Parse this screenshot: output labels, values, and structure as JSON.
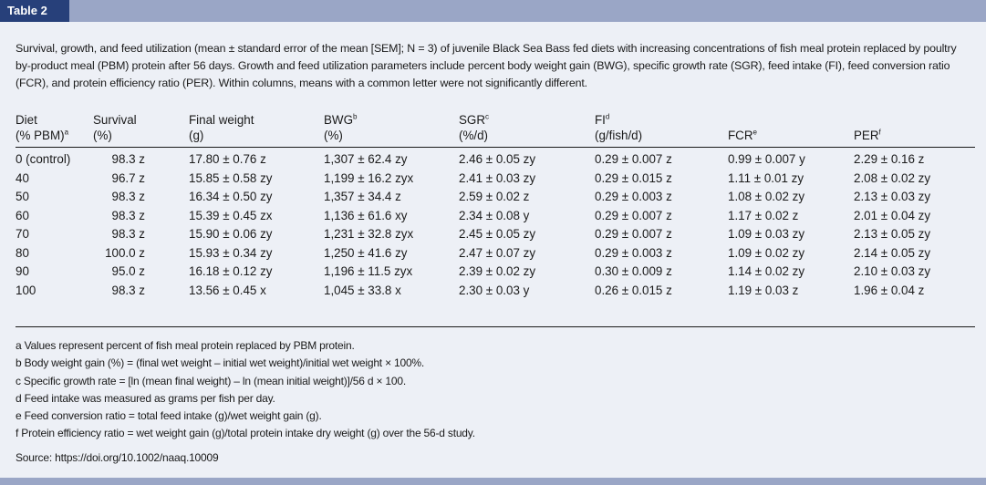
{
  "header": {
    "tab_label": "Table 2"
  },
  "caption": "Survival, growth, and feed utilization (mean ± standard error of the mean [SEM]; N = 3) of juvenile Black Sea Bass fed diets with increasing concentrations of fish meal protein replaced by poultry by-product meal (PBM) protein after 56 days. Growth and feed utilization parameters include percent body weight gain (BWG), specific growth rate (SGR), feed intake (FI), feed conversion ratio (FCR), and protein efficiency ratio (PER). Within columns, means with a common letter were not significantly different.",
  "table": {
    "headers": [
      {
        "line1": "Diet",
        "line2": "(% PBM)",
        "sup": "a"
      },
      {
        "line1": "Survival",
        "line2": "(%)",
        "sup": ""
      },
      {
        "line1": "Final weight",
        "line2": "(g)",
        "sup": ""
      },
      {
        "line1": "BWG",
        "line2": "(%)",
        "sup": "b"
      },
      {
        "line1": "SGR",
        "line2": "(%/d)",
        "sup": "c"
      },
      {
        "line1": "FI",
        "line2": "(g/fish/d)",
        "sup": "d"
      },
      {
        "line1": "FCR",
        "line2": "",
        "sup": "e"
      },
      {
        "line1": "PER",
        "line2": "",
        "sup": "f"
      }
    ],
    "rows": [
      [
        "0 (control)",
        "98.3 z",
        "17.80 ± 0.76 z",
        "1,307 ± 62.4 zy",
        "2.46 ± 0.05 zy",
        "0.29 ± 0.007 z",
        "0.99 ± 0.007 y",
        "2.29 ± 0.16 z"
      ],
      [
        "40",
        "96.7 z",
        "15.85 ± 0.58 zy",
        "1,199 ± 16.2 zyx",
        "2.41 ± 0.03 zy",
        "0.29 ± 0.015 z",
        "1.11 ± 0.01 zy",
        "2.08 ± 0.02 zy"
      ],
      [
        "50",
        "98.3 z",
        "16.34 ± 0.50 zy",
        "1,357 ± 34.4 z",
        "2.59 ± 0.02 z",
        "0.29 ± 0.003 z",
        "1.08 ± 0.02 zy",
        "2.13 ± 0.03 zy"
      ],
      [
        "60",
        "98.3 z",
        "15.39 ± 0.45 zx",
        "1,136 ± 61.6 xy",
        "2.34 ± 0.08 y",
        "0.29 ± 0.007 z",
        "1.17 ± 0.02 z",
        "2.01 ± 0.04 zy"
      ],
      [
        "70",
        "98.3 z",
        "15.90 ± 0.06 zy",
        "1,231 ± 32.8 zyx",
        "2.45 ± 0.05 zy",
        "0.29 ± 0.007 z",
        "1.09 ± 0.03 zy",
        "2.13 ± 0.05 zy"
      ],
      [
        "80",
        "100.0 z",
        "15.93 ± 0.34 zy",
        "1,250 ± 41.6 zy",
        "2.47 ± 0.07 zy",
        "0.29 ± 0.003 z",
        "1.09 ± 0.02 zy",
        "2.14 ± 0.05 zy"
      ],
      [
        "90",
        "95.0 z",
        "16.18 ± 0.12 zy",
        "1,196 ± 11.5 zyx",
        "2.39 ± 0.02 zy",
        "0.30 ± 0.009 z",
        "1.14 ± 0.02 zy",
        "2.10 ± 0.03 zy"
      ],
      [
        "100",
        "98.3 z",
        "13.56 ± 0.45 x",
        "1,045 ± 33.8 x",
        "2.30 ± 0.03 y",
        "0.26 ± 0.015 z",
        "1.19 ± 0.03 z",
        "1.96 ± 0.04 z"
      ]
    ]
  },
  "footnotes": [
    "a Values represent percent of fish meal protein replaced by PBM protein.",
    "b Body weight gain (%) = (final wet weight – initial wet weight)/initial wet weight × 100%.",
    "c Specific growth rate = [ln (mean final weight) – ln (mean initial weight)]/56 d × 100.",
    "d Feed intake was measured as grams per fish per day.",
    "e Feed conversion ratio = total feed intake (g)/wet weight gain (g).",
    "f Protein efficiency ratio = wet weight gain (g)/total protein intake dry weight (g) over the 56-d study."
  ],
  "source": "Source: https://doi.org/10.1002/naaq.10009",
  "colors": {
    "tab_bg": "#27407a",
    "bar_bg": "#9aa6c6",
    "page_bg": "#edf0f6"
  }
}
